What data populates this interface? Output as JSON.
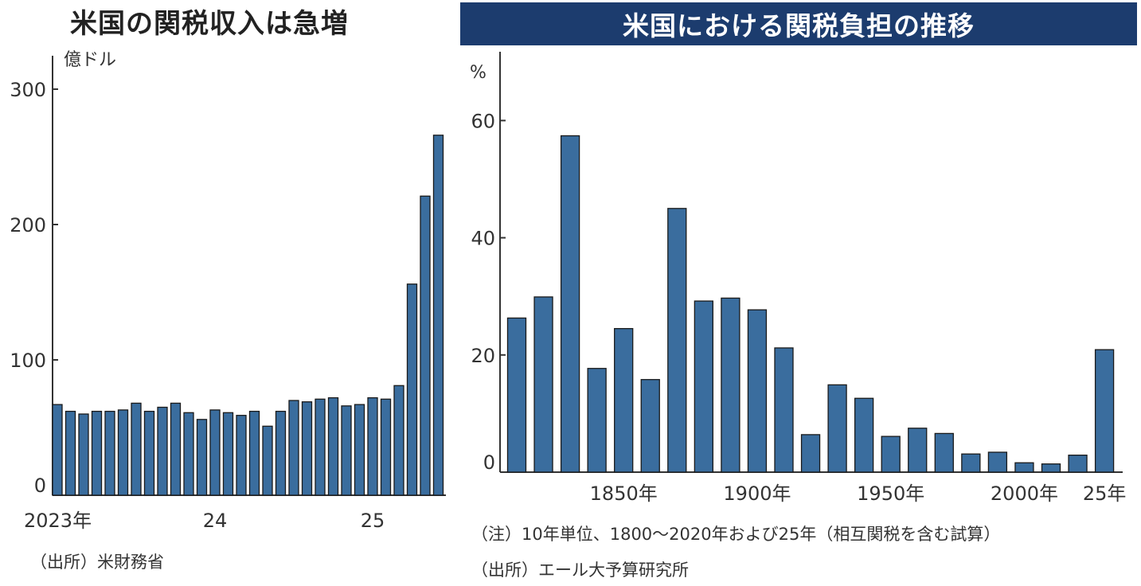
{
  "chart_data": [
    {
      "type": "bar",
      "title": "米国の関税収入は急増",
      "ylabel": "億ドル",
      "ylim": [
        0,
        330
      ],
      "yticks": [
        0,
        100,
        200,
        300
      ],
      "xtick_labels": [
        {
          "index": 0,
          "label": "2023年"
        },
        {
          "index": 12,
          "label": "24"
        },
        {
          "index": 24,
          "label": "25"
        }
      ],
      "categories": [
        "2023-01",
        "2023-02",
        "2023-03",
        "2023-04",
        "2023-05",
        "2023-06",
        "2023-07",
        "2023-08",
        "2023-09",
        "2023-10",
        "2023-11",
        "2023-12",
        "2024-01",
        "2024-02",
        "2024-03",
        "2024-04",
        "2024-05",
        "2024-06",
        "2024-07",
        "2024-08",
        "2024-09",
        "2024-10",
        "2024-11",
        "2024-12",
        "2025-01",
        "2025-02",
        "2025-03",
        "2025-04",
        "2025-05",
        "2025-06"
      ],
      "values": [
        67,
        62,
        60,
        62,
        62,
        63,
        68,
        62,
        65,
        68,
        61,
        56,
        63,
        61,
        59,
        62,
        51,
        62,
        70,
        69,
        71,
        72,
        66,
        67,
        72,
        71,
        81,
        156,
        221,
        266
      ],
      "source": "（出所）米財務省",
      "color": "#3a6d9e"
    },
    {
      "type": "bar",
      "title": "米国における関税負担の推移",
      "ylabel": "%",
      "ylim": [
        0,
        72
      ],
      "yticks": [
        0,
        20,
        40,
        60
      ],
      "xtick_labels": [
        {
          "index": 4,
          "label": "1850年"
        },
        {
          "index": 9,
          "label": "1900年"
        },
        {
          "index": 14,
          "label": "1950年"
        },
        {
          "index": 19,
          "label": "2000年"
        },
        {
          "index": 22,
          "label": "25年"
        }
      ],
      "categories": [
        "1810",
        "1820",
        "1830",
        "1840",
        "1850",
        "1860",
        "1870",
        "1880",
        "1890",
        "1900",
        "1910",
        "1920",
        "1930",
        "1940",
        "1950",
        "1960",
        "1970",
        "1980",
        "1990",
        "2000",
        "2010",
        "2020",
        "2025"
      ],
      "values": [
        26.3,
        29.9,
        57.4,
        17.7,
        24.5,
        15.8,
        45.0,
        29.2,
        29.7,
        27.7,
        21.2,
        6.4,
        14.9,
        12.6,
        6.1,
        7.5,
        6.6,
        3.1,
        3.4,
        1.6,
        1.4,
        2.9,
        20.9
      ],
      "note": "（注）10年単位、1800～2020年および25年（相互関税を含む試算）",
      "source": "（出所）エール大予算研究所",
      "color": "#3a6d9e",
      "banner_color": "#1c3c6e"
    }
  ]
}
